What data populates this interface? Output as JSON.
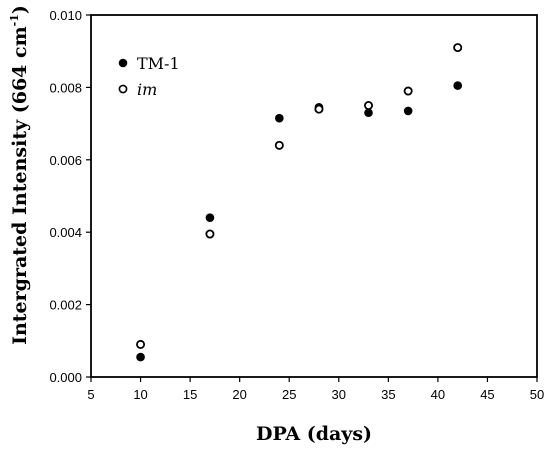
{
  "chart_data": {
    "type": "scatter",
    "title": "",
    "xlabel": "DPA (days)",
    "ylabel_main": "Intergrated Intensity (664 cm",
    "ylabel_sup": "-1",
    "ylabel_close": ")",
    "xlim": [
      5,
      50
    ],
    "ylim": [
      0.0,
      0.01
    ],
    "x_ticks": [
      5,
      10,
      15,
      20,
      25,
      30,
      35,
      40,
      45,
      50
    ],
    "x_tick_labels": [
      "5",
      "10",
      "15",
      "20",
      "25",
      "30",
      "35",
      "40",
      "45",
      "50"
    ],
    "y_ticks": [
      0,
      0.002,
      0.004,
      0.006,
      0.008,
      0.01
    ],
    "y_tick_labels": [
      "0.000",
      "0.002",
      "0.004",
      "0.006",
      "0.008",
      "0.010"
    ],
    "grid": false,
    "legend_position": "top-left",
    "series": [
      {
        "name": "TM-1",
        "marker": "filled-circle",
        "color": "#000000",
        "x": [
          10,
          17,
          24,
          28,
          28,
          33,
          37,
          42
        ],
        "y": [
          0.00055,
          0.0044,
          0.00715,
          0.0074,
          0.00745,
          0.0073,
          0.00735,
          0.00805
        ]
      },
      {
        "name": "im",
        "marker": "open-circle",
        "color": "#000000",
        "x": [
          10,
          17,
          24,
          28,
          33,
          37,
          42
        ],
        "y": [
          0.0009,
          0.00395,
          0.0064,
          0.0074,
          0.0075,
          0.0079,
          0.0091
        ]
      }
    ]
  }
}
